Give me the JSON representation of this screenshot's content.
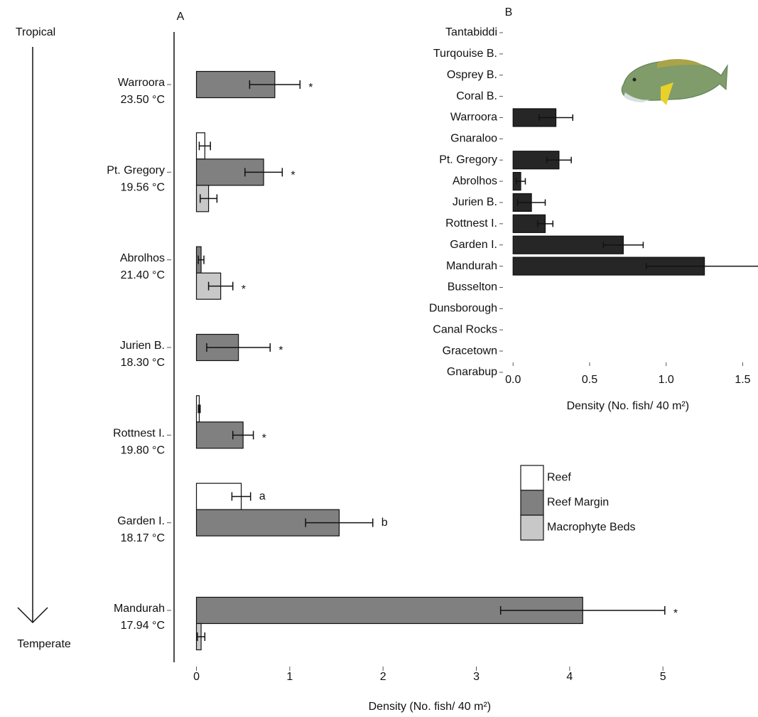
{
  "chart_data": [
    {
      "type": "bar",
      "orientation": "horizontal",
      "panel_label": "A",
      "gradient_labels": [
        "Tropical",
        "Temperate"
      ],
      "categories": [
        "Warroora",
        "Pt. Gregory",
        "Abrolhos",
        "Jurien B.",
        "Rottnest I.",
        "Garden I.",
        "Mandurah"
      ],
      "category_subtitles": [
        "23.50 °C",
        "19.56 °C",
        "21.40 °C",
        "18.30 °C",
        "19.80 °C",
        "18.17 °C",
        "17.94 °C"
      ],
      "series": [
        {
          "name": "Reef",
          "color": "#ffffff",
          "values": [
            null,
            0.09,
            null,
            null,
            0.03,
            0.48,
            null
          ],
          "errors": [
            null,
            0.06,
            null,
            null,
            0.01,
            0.1,
            null
          ],
          "significance": [
            null,
            null,
            null,
            null,
            null,
            "a",
            null
          ]
        },
        {
          "name": "Reef Margin",
          "color": "#808080",
          "values": [
            0.84,
            0.72,
            0.05,
            0.45,
            0.5,
            1.53,
            4.14
          ],
          "errors": [
            0.27,
            0.2,
            0.03,
            0.34,
            0.11,
            0.36,
            0.88
          ],
          "significance": [
            "*",
            "*",
            null,
            "*",
            "*",
            "b",
            "*"
          ]
        },
        {
          "name": "Macrophyte Beds",
          "color": "#c8c8c8",
          "values": [
            null,
            0.13,
            0.26,
            null,
            null,
            null,
            0.05
          ],
          "errors": [
            null,
            0.09,
            0.13,
            null,
            null,
            null,
            0.04
          ],
          "significance": [
            null,
            null,
            "*",
            null,
            null,
            null,
            null
          ]
        }
      ],
      "xlabel": "Density (No. fish/ 40 m²)",
      "xlim": [
        -0.24,
        5.6
      ],
      "xticks": [
        0,
        1,
        2,
        3,
        4,
        5
      ],
      "legend": "right"
    },
    {
      "type": "bar",
      "orientation": "horizontal",
      "panel_label": "B",
      "categories": [
        "Tantabiddi",
        "Turqouise B.",
        "Osprey B.",
        "Coral B.",
        "Warroora",
        "Gnaraloo",
        "Pt. Gregory",
        "Abrolhos",
        "Jurien B.",
        "Rottnest I.",
        "Garden I.",
        "Mandurah",
        "Busselton",
        "Dunsborough",
        "Canal Rocks",
        "Gracetown",
        "Gnarabup"
      ],
      "series": [
        {
          "color": "#262626",
          "values": [
            null,
            null,
            null,
            null,
            0.28,
            null,
            0.3,
            0.05,
            0.12,
            0.21,
            0.72,
            1.25,
            null,
            null,
            null,
            null,
            null
          ],
          "errors": [
            null,
            null,
            null,
            null,
            0.11,
            null,
            0.08,
            0.03,
            0.09,
            0.05,
            0.13,
            0.38,
            null,
            null,
            null,
            null,
            null
          ]
        }
      ],
      "xlabel": "Density (No. fish/ 40 m²)",
      "xlim": [
        -0.08,
        1.6
      ],
      "xticks": [
        {
          "value": 0,
          "label": "0.0"
        },
        {
          "value": 0.5,
          "label": "0.5"
        },
        {
          "value": 1,
          "label": "1.0"
        },
        {
          "value": 1.5,
          "label": "1.5"
        }
      ]
    }
  ]
}
